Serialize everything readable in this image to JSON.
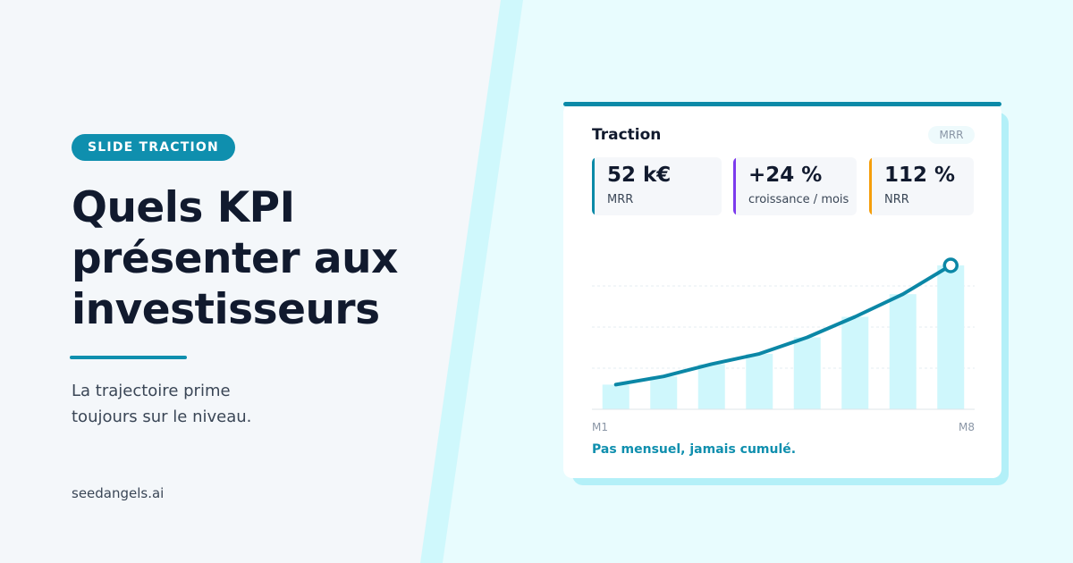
{
  "badge": "SLIDE TRACTION",
  "title_lines": [
    "Quels KPI",
    "présenter aux",
    "investisseurs"
  ],
  "subtitle_lines": [
    "La trajectoire prime",
    "toujours sur le niveau."
  ],
  "footer": "seedangels.ai",
  "card": {
    "title": "Traction",
    "tag": "MRR",
    "kpis": [
      {
        "value": "52 k€",
        "label": "MRR",
        "color": "#0b8aa8"
      },
      {
        "value": "+24 %",
        "label": "croissance / mois",
        "color": "#7c3aed"
      },
      {
        "value": "112 %",
        "label": "NRR",
        "color": "#f59e0b"
      }
    ],
    "note": "Pas mensuel, jamais cumulé."
  },
  "chart_data": {
    "type": "bar-line",
    "categories": [
      "M1",
      null,
      null,
      null,
      null,
      null,
      null,
      "M8"
    ],
    "values": [
      0.6,
      0.8,
      1.1,
      1.35,
      1.75,
      2.25,
      2.8,
      3.5
    ],
    "bar_color": "#cff7fc",
    "line_color": "#0b87a6",
    "ylim": [
      0,
      4
    ],
    "yticks": [
      1,
      2,
      3
    ],
    "grid": true
  }
}
